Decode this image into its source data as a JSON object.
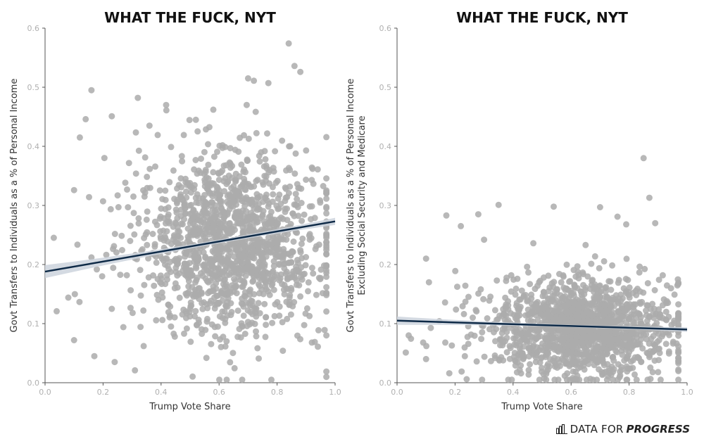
{
  "chart_data": [
    {
      "type": "scatter",
      "title": "WHAT THE FUCK, NYT",
      "xlabel": "Trump Vote Share",
      "ylabel": [
        "Govt Transfers to Individuals as a % of Personal Income"
      ],
      "xlim": [
        0.0,
        1.0
      ],
      "ylim": [
        0.0,
        0.6
      ],
      "xticks": [
        "0.0",
        "0.2",
        "0.4",
        "0.6",
        "0.8",
        "1.0"
      ],
      "yticks": [
        "0.0",
        "0.1",
        "0.2",
        "0.3",
        "0.4",
        "0.5",
        "0.6"
      ],
      "regression": {
        "x": [
          0.0,
          1.0
        ],
        "y": [
          0.188,
          0.273
        ],
        "ci_halfwidth_ends": 0.011,
        "ci_halfwidth_center": 0.003
      },
      "cloud": {
        "center": [
          0.64,
          0.235
        ],
        "spread": [
          0.14,
          0.075
        ],
        "n": 1500
      },
      "points": [
        [
          0.16,
          0.495
        ],
        [
          0.32,
          0.482
        ],
        [
          0.84,
          0.574
        ],
        [
          0.86,
          0.536
        ],
        [
          0.88,
          0.526
        ],
        [
          0.31,
          0.021
        ],
        [
          0.17,
          0.045
        ],
        [
          0.24,
          0.035
        ],
        [
          0.82,
          0.054
        ],
        [
          0.04,
          0.121
        ],
        [
          0.1,
          0.072
        ],
        [
          0.1,
          0.326
        ],
        [
          0.12,
          0.415
        ],
        [
          0.14,
          0.446
        ],
        [
          0.23,
          0.451
        ],
        [
          0.36,
          0.435
        ],
        [
          0.58,
          0.462
        ],
        [
          0.7,
          0.515
        ],
        [
          0.72,
          0.511
        ],
        [
          0.77,
          0.507
        ],
        [
          0.95,
          0.177
        ],
        [
          0.92,
          0.068
        ],
        [
          0.94,
          0.361
        ],
        [
          0.08,
          0.144
        ],
        [
          0.16,
          0.212
        ],
        [
          0.2,
          0.307
        ],
        [
          0.27,
          0.094
        ],
        [
          0.34,
          0.062
        ],
        [
          0.9,
          0.393
        ],
        [
          0.88,
          0.146
        ]
      ]
    },
    {
      "type": "scatter",
      "title": "WHAT THE FUCK, NYT",
      "xlabel": "Trump Vote Share",
      "ylabel": [
        "Govt Transfers to Individuals as a % of Personal Income",
        "Excluding Social Security and Medicare"
      ],
      "xlim": [
        0.0,
        1.0
      ],
      "ylim": [
        0.0,
        0.6
      ],
      "xticks": [
        "0.0",
        "0.2",
        "0.4",
        "0.6",
        "0.8",
        "1.0"
      ],
      "yticks": [
        "0.0",
        "0.1",
        "0.2",
        "0.3",
        "0.4",
        "0.5",
        "0.6"
      ],
      "regression": {
        "x": [
          0.0,
          1.0
        ],
        "y": [
          0.105,
          0.09
        ],
        "ci_halfwidth_ends": 0.007,
        "ci_halfwidth_center": 0.002
      },
      "cloud": {
        "center": [
          0.64,
          0.095
        ],
        "spread": [
          0.14,
          0.042
        ],
        "n": 1500
      },
      "points": [
        [
          0.85,
          0.38
        ],
        [
          0.87,
          0.313
        ],
        [
          0.35,
          0.301
        ],
        [
          0.17,
          0.283
        ],
        [
          0.28,
          0.285
        ],
        [
          0.54,
          0.298
        ],
        [
          0.7,
          0.297
        ],
        [
          0.76,
          0.281
        ],
        [
          0.89,
          0.27
        ],
        [
          0.1,
          0.21
        ],
        [
          0.11,
          0.17
        ],
        [
          0.09,
          0.068
        ],
        [
          0.1,
          0.04
        ],
        [
          0.04,
          0.08
        ],
        [
          0.18,
          0.016
        ],
        [
          0.24,
          0.006
        ],
        [
          0.9,
          0.018
        ],
        [
          0.97,
          0.036
        ],
        [
          0.93,
          0.138
        ],
        [
          0.95,
          0.09
        ],
        [
          0.22,
          0.265
        ],
        [
          0.3,
          0.242
        ],
        [
          0.47,
          0.236
        ],
        [
          0.65,
          0.233
        ],
        [
          0.79,
          0.268
        ]
      ]
    }
  ],
  "brand": {
    "name_plain": "DATA FOR",
    "name_bold": "PROGRESS",
    "icon": "bar-chart-icon"
  },
  "colors": {
    "point": "#ababab",
    "line": "#0e2a47",
    "ci": "#ccd3dd",
    "axis": "#555555",
    "tick": "#b0b0b0"
  }
}
